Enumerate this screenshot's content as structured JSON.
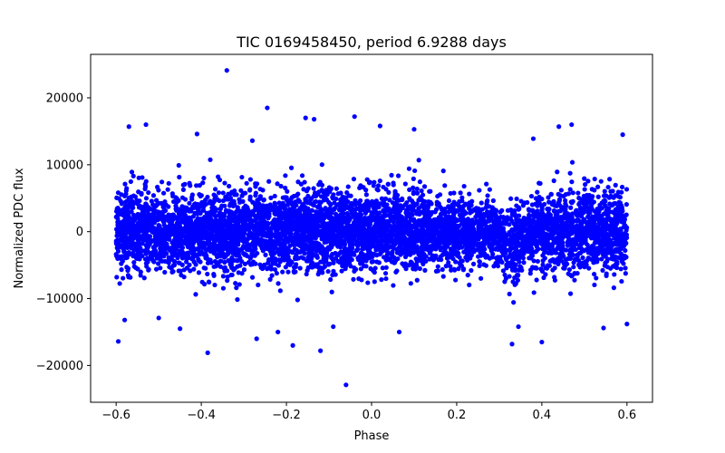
{
  "chart_data": {
    "type": "scatter",
    "title": "TIC 0169458450, period 6.9288 days",
    "xlabel": "Phase",
    "ylabel": "Normalized PDC flux",
    "xlim": [
      -0.66,
      0.66
    ],
    "ylim": [
      -25500,
      26500
    ],
    "grid": false,
    "marker_color": "#0000ff",
    "x_ticks": [
      -0.6,
      -0.4,
      -0.2,
      0.0,
      0.2,
      0.4,
      0.6
    ],
    "x_tick_labels": [
      "−0.6",
      "−0.4",
      "−0.2",
      "0.0",
      "0.2",
      "0.4",
      "0.6"
    ],
    "y_ticks": [
      -20000,
      -10000,
      0,
      10000,
      20000
    ],
    "y_tick_labels": [
      "−20000",
      "−10000",
      "0",
      "10000",
      "20000"
    ],
    "series": [
      {
        "name": "PDC flux",
        "phase_range": [
          -0.6,
          0.6
        ],
        "typical_scatter": 3000,
        "dip": {
          "center_phase": 0.333,
          "half_width": 0.04,
          "depth": 2500
        },
        "points": [
          [
            -0.34,
            24100
          ],
          [
            -0.245,
            18500
          ],
          [
            -0.06,
            -22900
          ],
          [
            -0.385,
            -18100
          ],
          [
            -0.595,
            -16400
          ],
          [
            -0.12,
            -17800
          ],
          [
            0.4,
            -16500
          ],
          [
            0.33,
            -16800
          ],
          [
            -0.53,
            16000
          ],
          [
            -0.57,
            15700
          ],
          [
            -0.155,
            17000
          ],
          [
            -0.135,
            16800
          ],
          [
            -0.04,
            17200
          ],
          [
            0.02,
            15800
          ],
          [
            0.1,
            15300
          ],
          [
            0.44,
            15700
          ],
          [
            0.47,
            16000
          ],
          [
            0.59,
            14500
          ],
          [
            -0.41,
            14600
          ],
          [
            -0.28,
            13600
          ],
          [
            0.38,
            13900
          ],
          [
            -0.22,
            -15000
          ],
          [
            -0.185,
            -17000
          ],
          [
            -0.27,
            -16000
          ],
          [
            0.545,
            -14400
          ],
          [
            0.6,
            -13800
          ],
          [
            -0.58,
            -13200
          ],
          [
            0.065,
            -15000
          ],
          [
            -0.09,
            -14200
          ],
          [
            -0.45,
            -14500
          ],
          [
            0.345,
            -14200
          ],
          [
            -0.5,
            -12900
          ]
        ]
      }
    ]
  }
}
